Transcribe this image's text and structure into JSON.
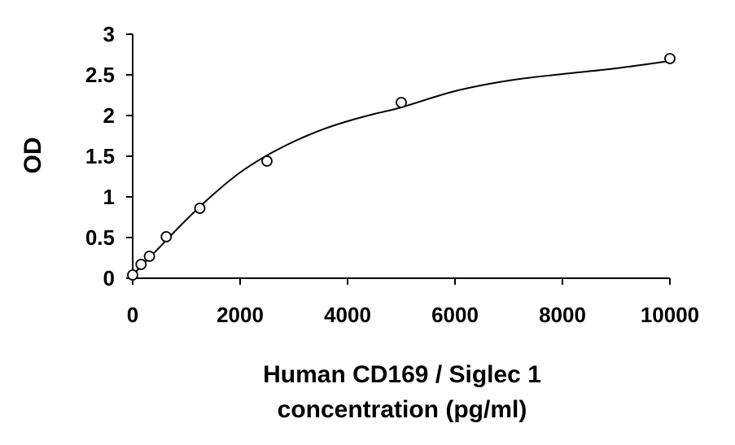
{
  "chart_data": {
    "type": "scatter",
    "xlabel_lines": [
      "Human CD169 / Siglec 1",
      "concentration (pg/ml)"
    ],
    "ylabel": "OD",
    "xlim": [
      0,
      10000
    ],
    "ylim": [
      0,
      3
    ],
    "xticks": [
      0,
      2000,
      4000,
      6000,
      8000,
      10000
    ],
    "yticks": [
      0,
      0.5,
      1,
      1.5,
      2,
      2.5,
      3
    ],
    "xtick_labels": [
      "0",
      "2000",
      "4000",
      "6000",
      "8000",
      "10000"
    ],
    "ytick_labels": [
      "0",
      "0.5",
      "1",
      "1.5",
      "2",
      "2.5",
      "3"
    ],
    "grid": false,
    "legend": "none",
    "series": [
      {
        "marker": "open-circle",
        "x": [
          0,
          156,
          312,
          625,
          1250,
          2500,
          5000,
          10000
        ],
        "y": [
          0.04,
          0.17,
          0.27,
          0.51,
          0.86,
          1.44,
          2.16,
          2.7
        ]
      }
    ],
    "fit_curve": {
      "x": [
        0,
        500,
        1000,
        1500,
        2000,
        2500,
        3000,
        3500,
        4000,
        4500,
        5000,
        6000,
        7000,
        8000,
        9000,
        10000
      ],
      "y": [
        0.04,
        0.38,
        0.72,
        1.03,
        1.3,
        1.51,
        1.68,
        1.82,
        1.93,
        2.02,
        2.1,
        2.3,
        2.43,
        2.51,
        2.58,
        2.67
      ]
    },
    "colors": {
      "axis": "#000000",
      "marker": "#000000",
      "line": "#000000"
    }
  }
}
